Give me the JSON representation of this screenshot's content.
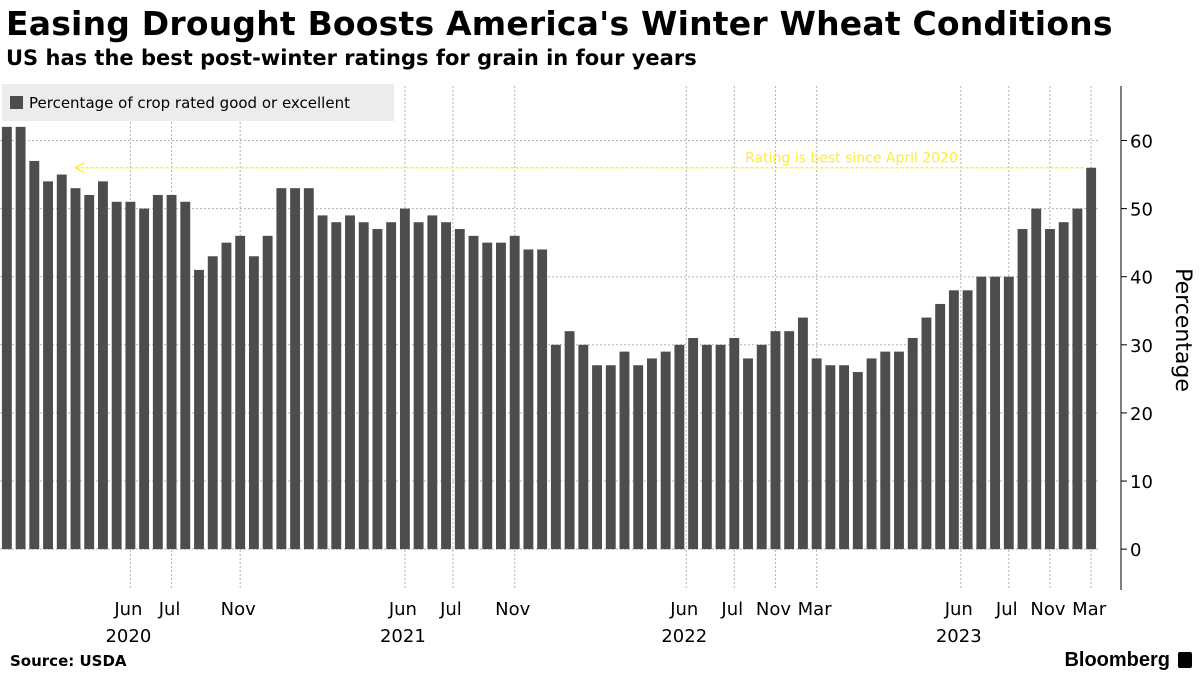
{
  "header": {
    "title": "Easing Drought Boosts America's Winter Wheat Conditions",
    "subtitle": "US has the best post-winter ratings for grain in four years"
  },
  "footer": {
    "source": "Source: USDA",
    "brand": "Bloomberg"
  },
  "colors": {
    "bar": "#4d4d4d",
    "annotation": "#ffeb3b",
    "grid": "#b3b3b3",
    "legend_bg": "#ececec"
  },
  "chart_data": {
    "type": "bar",
    "title": "Easing Drought Boosts America's Winter Wheat Conditions",
    "subtitle": "US has the best post-winter ratings for grain in four years",
    "ylabel": "Percentage",
    "ylim": [
      -6,
      68
    ],
    "yticks": [
      0,
      10,
      20,
      30,
      40,
      50,
      60
    ],
    "y_axis_side": "right",
    "grid": true,
    "legend": {
      "label": "Percentage of crop rated good or excellent",
      "placement": "top-left"
    },
    "series": [
      {
        "name": "Percentage of crop rated good or excellent",
        "values": [
          62,
          62,
          57,
          54,
          55,
          53,
          52,
          54,
          51,
          51,
          50,
          52,
          52,
          51,
          41,
          43,
          45,
          46,
          43,
          46,
          53,
          53,
          53,
          49,
          48,
          49,
          48,
          47,
          48,
          50,
          48,
          49,
          48,
          47,
          46,
          45,
          45,
          46,
          44,
          44,
          30,
          32,
          30,
          27,
          27,
          29,
          27,
          28,
          29,
          30,
          31,
          30,
          30,
          31,
          28,
          30,
          32,
          32,
          34,
          28,
          27,
          27,
          26,
          28,
          29,
          29,
          31,
          34,
          36,
          38,
          38,
          40,
          40,
          40,
          47,
          50,
          47,
          48,
          50,
          56
        ]
      }
    ],
    "x_tick_labels": [
      {
        "label": "Jun",
        "index": 9.5,
        "year": "2020"
      },
      {
        "label": "Jul",
        "index": 12.5
      },
      {
        "label": "Nov",
        "index": 17.5
      },
      {
        "label": "Jun",
        "index": 29.5,
        "year": "2021"
      },
      {
        "label": "Jul",
        "index": 33
      },
      {
        "label": "Nov",
        "index": 37.5
      },
      {
        "label": "Jun",
        "index": 50,
        "year": "2022"
      },
      {
        "label": "Jul",
        "index": 53.5
      },
      {
        "label": "Nov",
        "index": 56.5
      },
      {
        "label": "Mar",
        "index": 59.5
      },
      {
        "label": "Jun",
        "index": 70,
        "year": "2023"
      },
      {
        "label": "Jul",
        "index": 73.5
      },
      {
        "label": "Nov",
        "index": 76.5
      },
      {
        "label": "Mar",
        "index": 79.5
      }
    ],
    "annotation": {
      "text": "Rating is best since April 2020",
      "y": 56,
      "from_index": 5,
      "to_index": 79
    }
  }
}
